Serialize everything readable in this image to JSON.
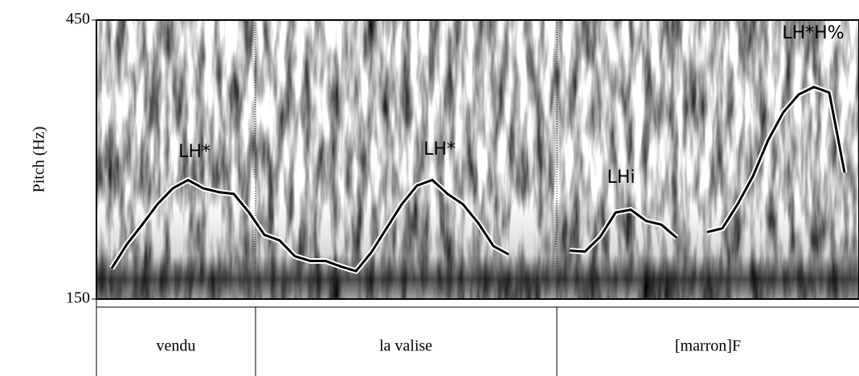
{
  "chart_data": {
    "type": "line",
    "y_label": "Pitch (Hz)",
    "ylim": [
      150,
      450
    ],
    "yticks": [
      150,
      450
    ],
    "categories": [
      null,
      null,
      null,
      null,
      null,
      null,
      null,
      null,
      null,
      null,
      null,
      null,
      null,
      null,
      null,
      null,
      null,
      null,
      null,
      null,
      null,
      null,
      null,
      null,
      null,
      null,
      null,
      null,
      null,
      null,
      null,
      null,
      null,
      null,
      null,
      null,
      null,
      null,
      null,
      null,
      null,
      null,
      null,
      null,
      null,
      null,
      null,
      null,
      null,
      null
    ],
    "values": [
      null,
      183,
      209,
      230,
      252,
      269,
      278,
      269,
      265,
      263,
      243,
      219,
      213,
      196,
      191,
      191,
      185,
      180,
      200,
      226,
      252,
      272,
      278,
      263,
      252,
      232,
      207,
      198,
      null,
      null,
      null,
      202,
      201,
      217,
      243,
      246,
      234,
      230,
      216,
      null,
      222,
      226,
      252,
      282,
      321,
      351,
      370,
      378,
      372,
      286
    ],
    "color": "#000000",
    "annotations": [
      "LH*",
      "LH*",
      "LHi",
      "LH*H%"
    ],
    "tiers": [
      "vendu",
      "la valise",
      "[marron]F"
    ]
  }
}
